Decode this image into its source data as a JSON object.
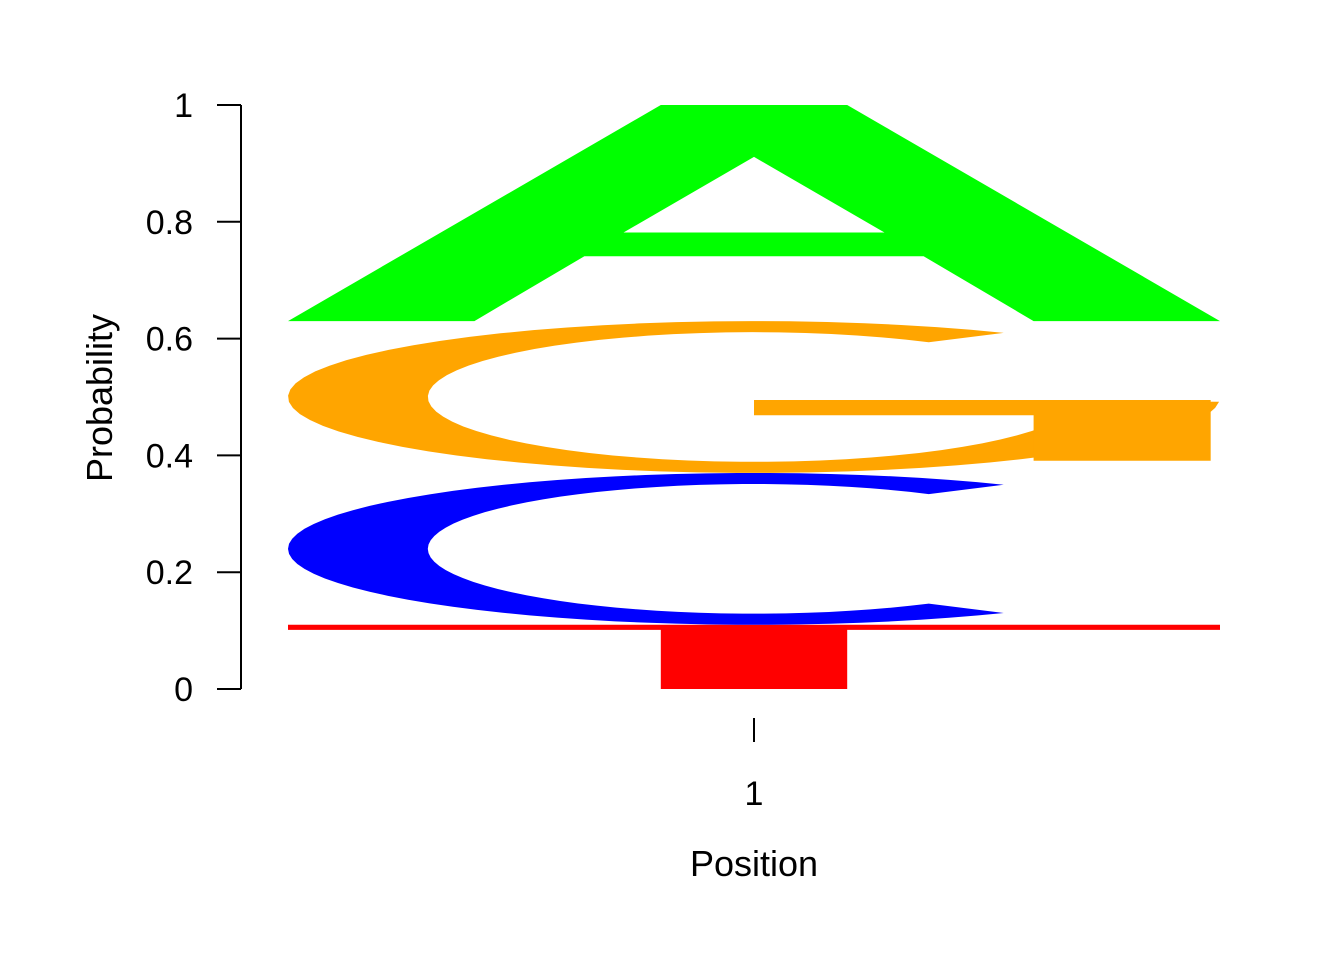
{
  "chart_data": {
    "type": "sequence-logo",
    "xlabel": "Position",
    "ylabel": "Probability",
    "positions": [
      "1"
    ],
    "ylim": [
      0,
      1
    ],
    "yticks": [
      {
        "value": 0,
        "label": "0"
      },
      {
        "value": 0.2,
        "label": "0.2"
      },
      {
        "value": 0.4,
        "label": "0.4"
      },
      {
        "value": 0.6,
        "label": "0.6"
      },
      {
        "value": 0.8,
        "label": "0.8"
      },
      {
        "value": 1,
        "label": "1"
      }
    ],
    "stack": [
      {
        "letter": "T",
        "probability": 0.11,
        "color": "#ff0000"
      },
      {
        "letter": "C",
        "probability": 0.26,
        "color": "#0000ff"
      },
      {
        "letter": "G",
        "probability": 0.26,
        "color": "#ffa500"
      },
      {
        "letter": "A",
        "probability": 0.37,
        "color": "#00ff00"
      }
    ]
  }
}
